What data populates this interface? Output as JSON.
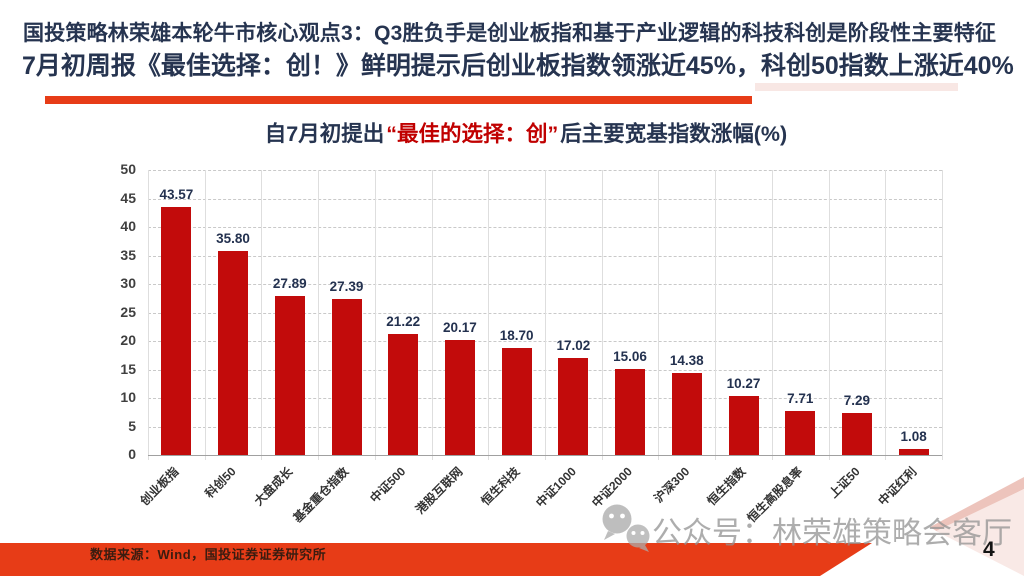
{
  "header": {
    "line1": "国投策略林荣雄本轮牛市核心观点3：Q3胜负手是创业板指和基于产业逻辑的科技科创是阶段性主要特征",
    "line2": "7月初周报《最佳选择：创！》鲜明提示后创业板指数领涨近45%，科创50指数上涨近40%"
  },
  "chart_data": {
    "type": "bar",
    "title": "自7月初提出“最佳的选择：创”后主要宽基指数涨幅(%)",
    "title_parts": {
      "prefix": "自7月初提出",
      "highlight": "“最佳的选择：创”",
      "suffix": "后主要宽基指数涨幅(%)"
    },
    "categories": [
      "创业板指",
      "科创50",
      "大盘成长",
      "基金重仓指数",
      "中证500",
      "港股互联网",
      "恒生科技",
      "中证1000",
      "中证2000",
      "沪深300",
      "恒生指数",
      "恒生高股息率",
      "上证50",
      "中证红利"
    ],
    "values": [
      43.57,
      35.8,
      27.89,
      27.39,
      21.22,
      20.17,
      18.7,
      17.02,
      15.06,
      14.38,
      10.27,
      7.71,
      7.29,
      1.08
    ],
    "value_labels": [
      "43.57",
      "35.80",
      "27.89",
      "27.39",
      "21.22",
      "20.17",
      "18.70",
      "17.02",
      "15.06",
      "14.38",
      "10.27",
      "7.71",
      "7.29",
      "1.08"
    ],
    "ylim": [
      0,
      50
    ],
    "ytick_step": 5,
    "xlabel": "",
    "ylabel": "",
    "legend": "none",
    "grid": {
      "horizontal": "dashed",
      "vertical": "light-solid"
    },
    "bar_color": "#c20b0b"
  },
  "footer": {
    "source": "数据来源：Wind，国投证券证券研究所",
    "watermark": "公众号：林荣雄策略会客厅",
    "page": "4"
  },
  "colors": {
    "headline_navy": "#263450",
    "accent_red": "#e73c17",
    "accent_pink": "#f8e7e4",
    "bar_red": "#c20b0b"
  }
}
